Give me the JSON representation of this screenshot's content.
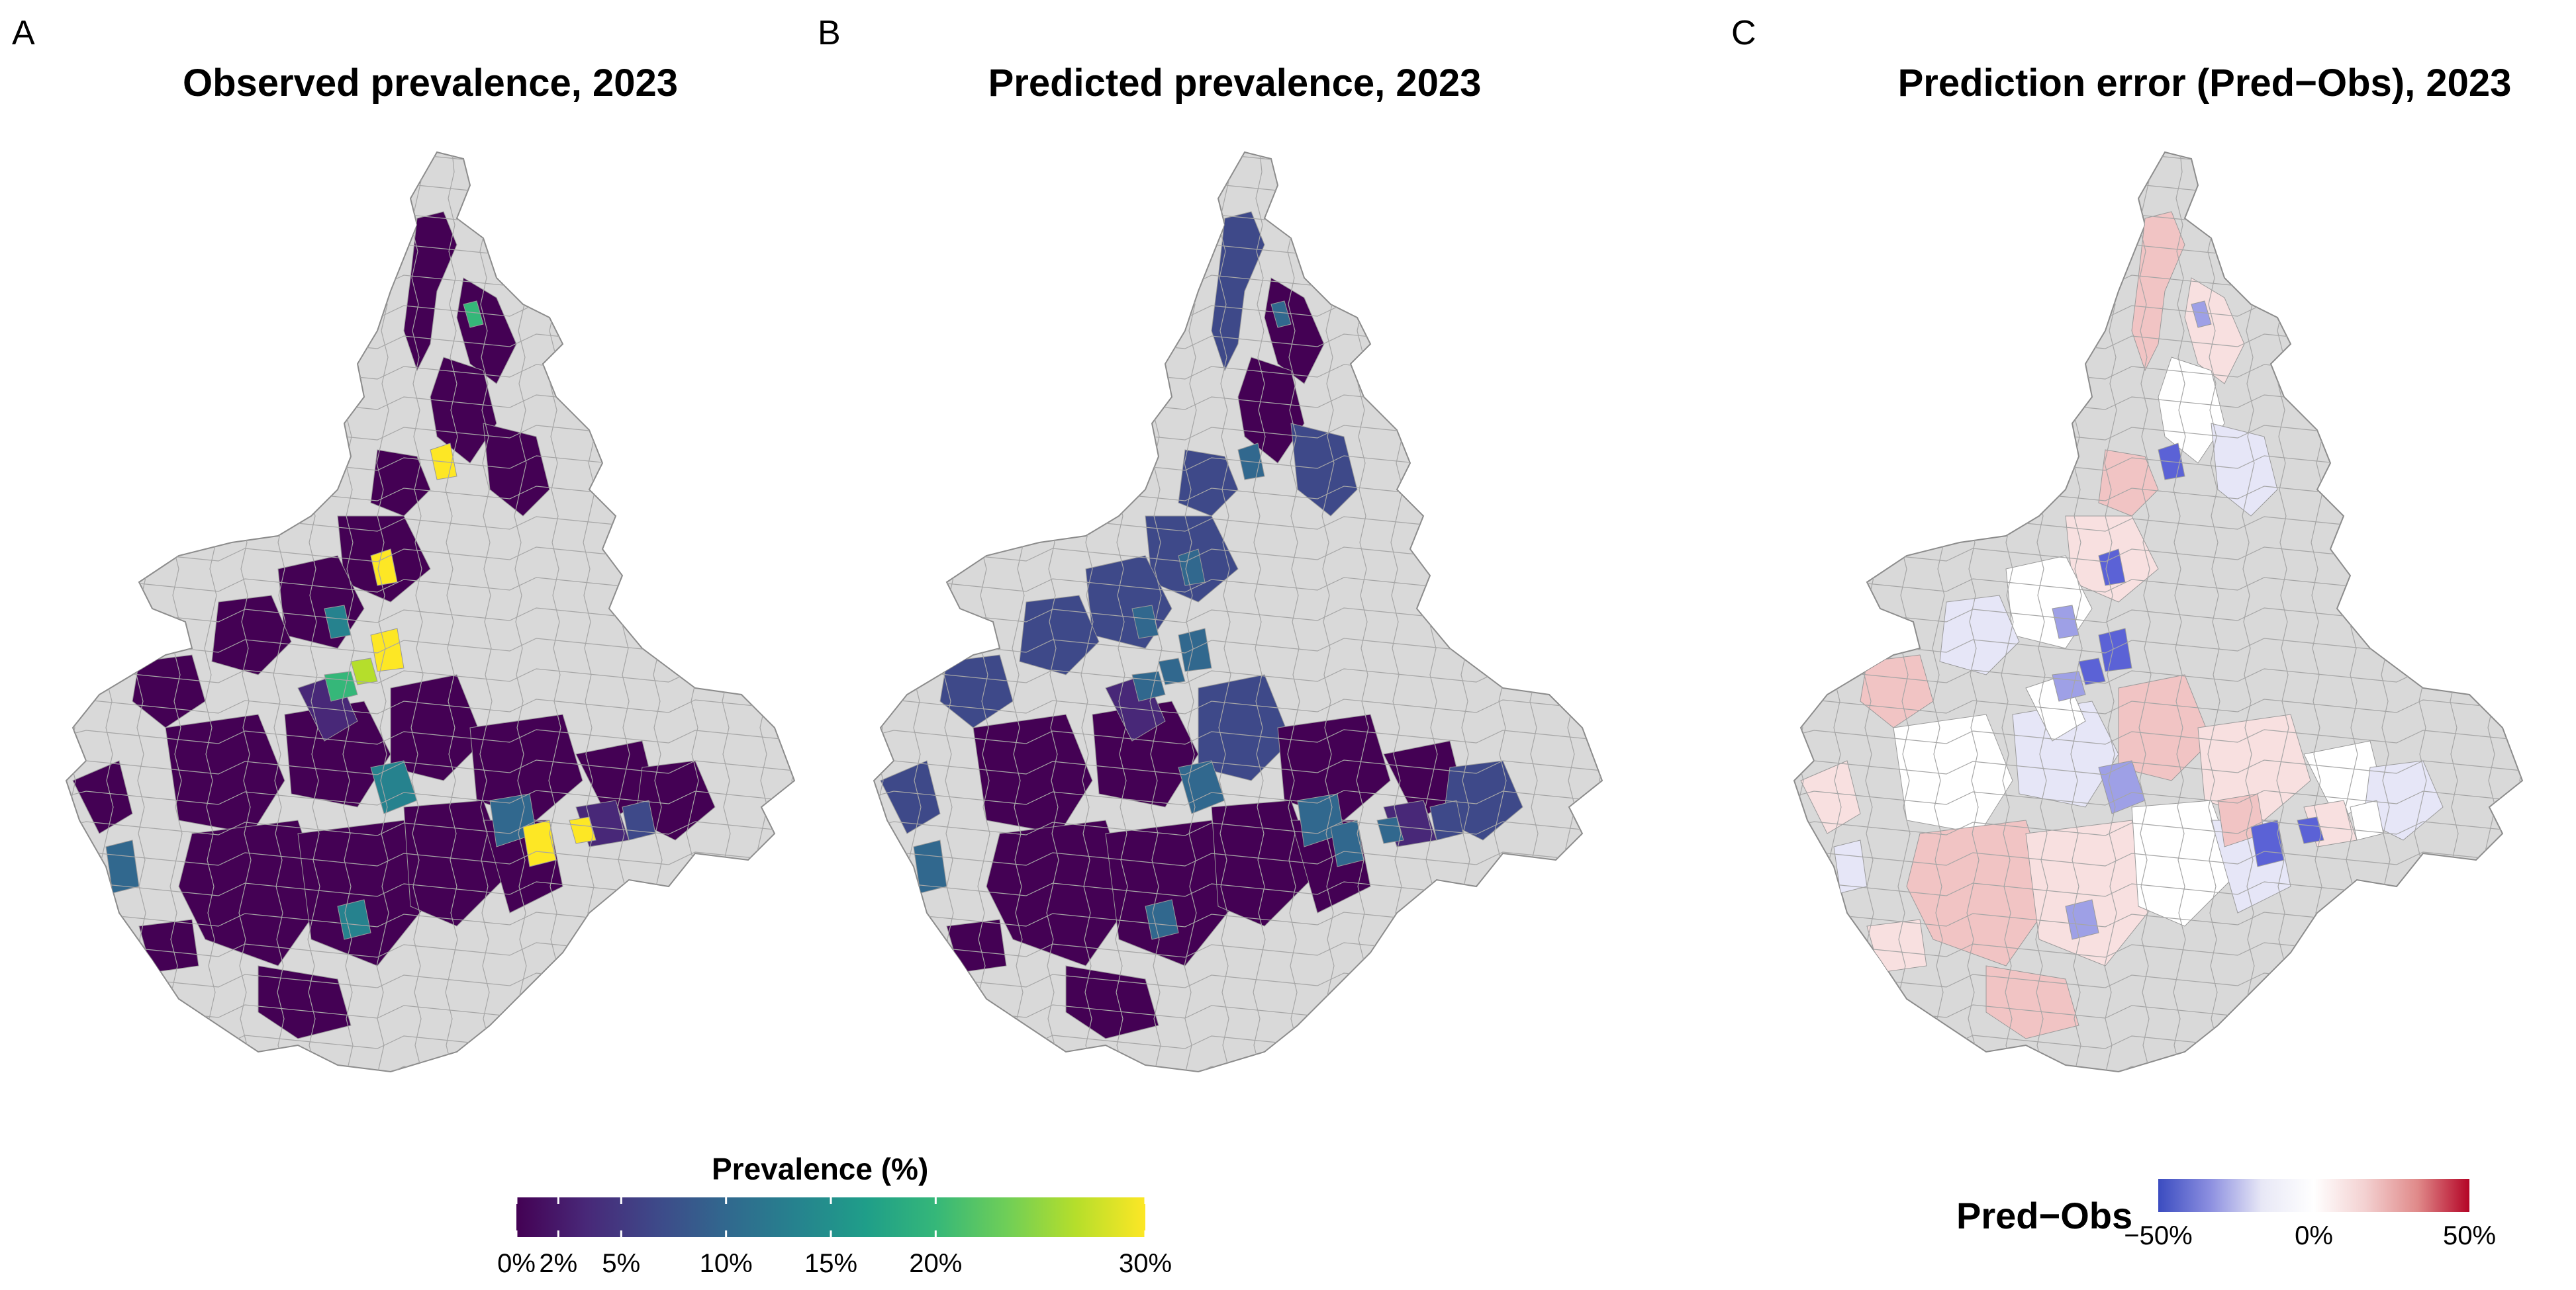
{
  "panels": [
    {
      "letter": "A",
      "title": "Observed prevalence, 2023"
    },
    {
      "letter": "B",
      "title": "Predicted prevalence, 2023"
    },
    {
      "letter": "C",
      "title": "Prediction error (Pred−Obs), 2023"
    }
  ],
  "prevalence_legend": {
    "title": "Prevalence (%)",
    "ticks": [
      "0%",
      "2%",
      "5%",
      "10%",
      "15%",
      "20%",
      "30%"
    ],
    "tick_values": [
      0,
      2,
      5,
      10,
      15,
      20,
      30
    ],
    "range": [
      0,
      30
    ],
    "colors": [
      "#440154",
      "#482878",
      "#3e4989",
      "#31688e",
      "#26828e",
      "#1f9e89",
      "#35b779",
      "#6ece58",
      "#b5de2b",
      "#fde725"
    ]
  },
  "error_legend": {
    "title": "Pred−Obs",
    "ticks": [
      "−50%",
      "0%",
      "50%"
    ],
    "tick_values": [
      -50,
      0,
      50
    ],
    "range": [
      -50,
      50
    ],
    "colors": [
      "#3b4cc0",
      "#8c8fe0",
      "#e8e8f6",
      "#ffffff",
      "#f3d0d0",
      "#e08a8a",
      "#b40426"
    ]
  },
  "map_colors": {
    "background": "#d9d9d9",
    "border": "#8c8c8c"
  }
}
